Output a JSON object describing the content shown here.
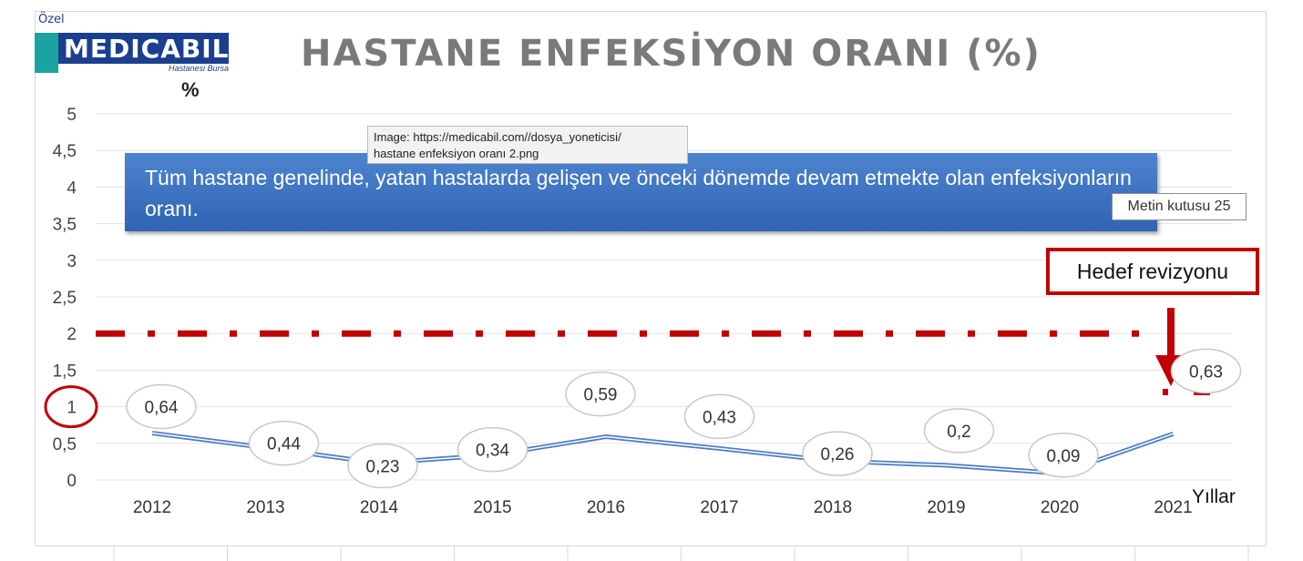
{
  "logo": {
    "prefix": "Özel",
    "name": "MEDICABIL",
    "subtitle": "Hastanesi Bursa"
  },
  "tooltip": {
    "line1": "Image: https://medicabil.com//dosya_yoneticisi/",
    "line2": "hastane enfeksiyon oranı 2.png"
  },
  "textbox_label": "Metin kutusu 25",
  "description": "Tüm hastane genelinde, yatan hastalarda gelişen ve önceki dönemde devam etmekte olan enfeksiyonların oranı.",
  "target_note": "Hedef revizyonu",
  "colors": {
    "line": "#4a7cc7",
    "target": "#c00000",
    "title": "#7a7a7a",
    "description_box": "#3b6fc0"
  },
  "chart_data": {
    "type": "line",
    "title": "HASTANE ENFEKSİYON ORANI (%)",
    "ylabel": "%",
    "xlabel": "Yıllar",
    "categories": [
      "2012",
      "2013",
      "2014",
      "2015",
      "2016",
      "2017",
      "2018",
      "2019",
      "2020",
      "2021"
    ],
    "values": [
      0.64,
      0.44,
      0.23,
      0.34,
      0.59,
      0.43,
      0.26,
      0.2,
      0.09,
      0.63
    ],
    "data_labels": [
      "0,64",
      "0,44",
      "0,23",
      "0,34",
      "0,59",
      "0,43",
      "0,26",
      "0,2",
      "0,09",
      "0,63"
    ],
    "ylim": [
      0,
      5
    ],
    "yticks": [
      0,
      0.5,
      1,
      1.5,
      2,
      2.5,
      3,
      3.5,
      4,
      4.5,
      5
    ],
    "ytick_labels": [
      "0",
      "0,5",
      "1",
      "1,5",
      "2",
      "2,5",
      "3",
      "3,5",
      "4",
      "4,5",
      "5"
    ],
    "grid": true,
    "target_line": {
      "value": 2,
      "from": "2012",
      "to": "2021"
    },
    "revised_target": {
      "value": 1.2,
      "at": "2021"
    },
    "highlighted_ytick": 1
  }
}
